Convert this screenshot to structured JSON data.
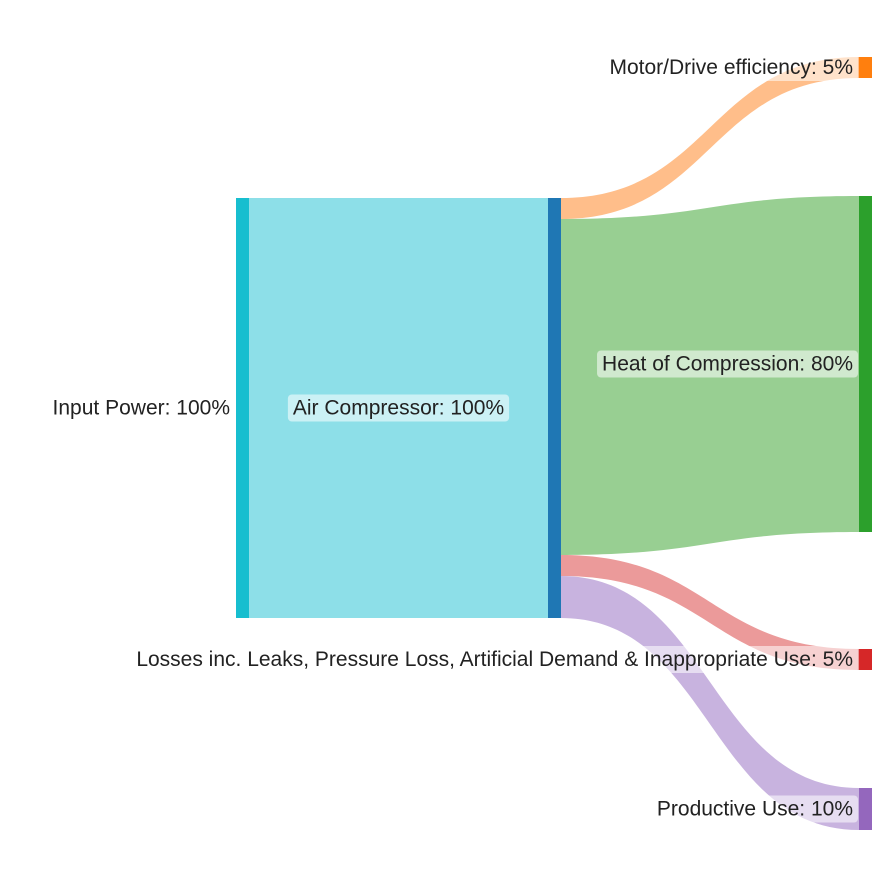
{
  "chart_data": {
    "type": "sankey",
    "title": "",
    "nodes": [
      {
        "id": "input",
        "label": "Input Power: 100%",
        "color": "#17becf"
      },
      {
        "id": "compressor",
        "label": "Air Compressor: 100%",
        "color": "#1f77b4"
      },
      {
        "id": "motor",
        "label": "Motor/Drive efficiency: 5%",
        "color": "#ff7f0e"
      },
      {
        "id": "heat",
        "label": "Heat of Compression: 80%",
        "color": "#2ca02c"
      },
      {
        "id": "losses",
        "label": "Losses inc. Leaks, Pressure Loss, Artificial Demand & Inappropriate Use: 5%",
        "color": "#d62728"
      },
      {
        "id": "productive",
        "label": "Productive Use: 10%",
        "color": "#9467bd"
      }
    ],
    "links": [
      {
        "source": "input",
        "target": "compressor",
        "value": 100,
        "color": "#8ddfe8"
      },
      {
        "source": "compressor",
        "target": "motor",
        "value": 5,
        "color": "#ffbe8a"
      },
      {
        "source": "compressor",
        "target": "heat",
        "value": 80,
        "color": "#98cf92"
      },
      {
        "source": "compressor",
        "target": "losses",
        "value": 5,
        "color": "#eb9a9a"
      },
      {
        "source": "compressor",
        "target": "productive",
        "value": 10,
        "color": "#c8b3df"
      }
    ]
  }
}
